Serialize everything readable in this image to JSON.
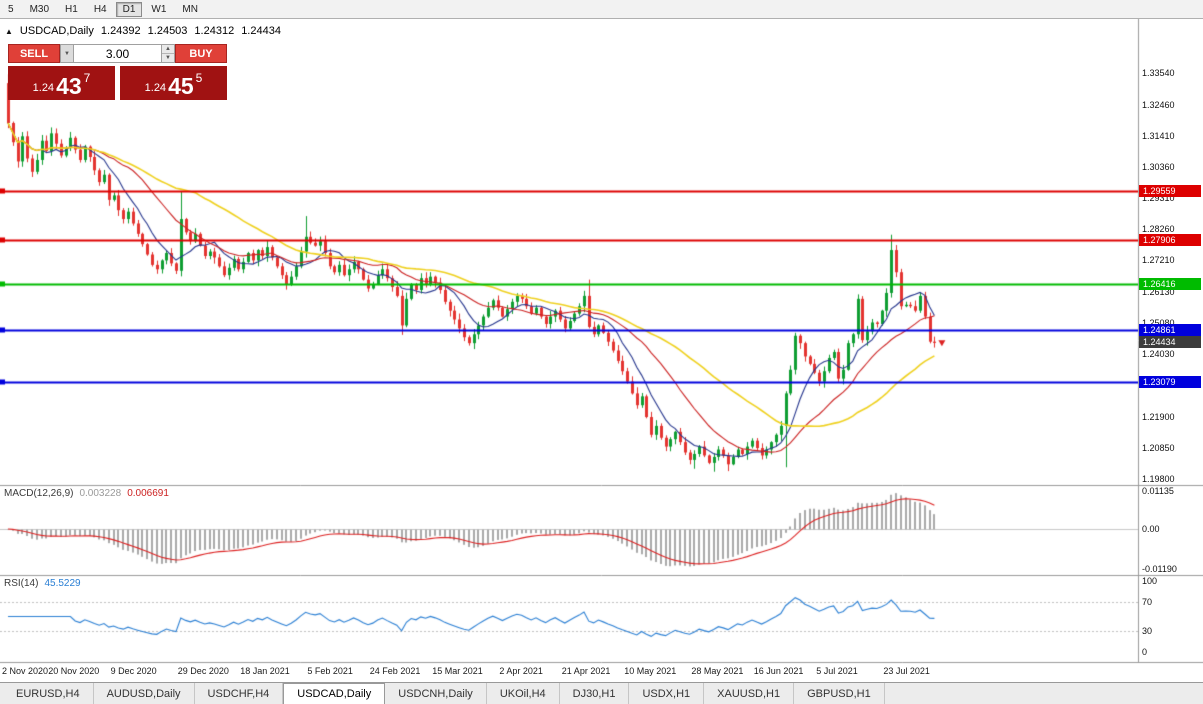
{
  "toolbar": {
    "timeframes": [
      {
        "label": "5",
        "active": false
      },
      {
        "label": "M30",
        "active": false
      },
      {
        "label": "H1",
        "active": false
      },
      {
        "label": "H4",
        "active": false
      },
      {
        "label": "D1",
        "active": true
      },
      {
        "label": "W1",
        "active": false
      },
      {
        "label": "MN",
        "active": false
      }
    ]
  },
  "symbol_header": {
    "tick_icon": "▲",
    "symbol": "USDCAD,Daily",
    "open": "1.24392",
    "high": "1.24503",
    "low": "1.24312",
    "close": "1.24434"
  },
  "trade_panel": {
    "sell_label": "SELL",
    "buy_label": "BUY",
    "volume": "3.00",
    "dropdown_icon": "▼",
    "spinner_up_icon": "▲",
    "spinner_down_icon": "▼",
    "bid": {
      "base": "1.24",
      "big": "43",
      "sup": "7"
    },
    "ask": {
      "base": "1.24",
      "big": "45",
      "sup": "5"
    }
  },
  "macd_panel": {
    "name": "MACD(12,26,9)",
    "main_value": "0.003228",
    "signal_value": "0.006691"
  },
  "rsi_panel": {
    "name": "RSI(14)",
    "value": "45.5229"
  },
  "tabs": [
    {
      "label": "EURUSD,H4",
      "active": false
    },
    {
      "label": "AUDUSD,Daily",
      "active": false
    },
    {
      "label": "USDCHF,H4",
      "active": false
    },
    {
      "label": "USDCAD,Daily",
      "active": true
    },
    {
      "label": "USDCNH,Daily",
      "active": false
    },
    {
      "label": "UKOil,H4",
      "active": false
    },
    {
      "label": "DJ30,H1",
      "active": false
    },
    {
      "label": "USDX,H1",
      "active": false
    },
    {
      "label": "XAUUSD,H1",
      "active": false
    },
    {
      "label": "GBPUSD,H1",
      "active": false
    }
  ],
  "chart_data": {
    "type": "candlestick",
    "symbol": "USDCAD",
    "timeframe": "Daily",
    "first_open": 1.332,
    "closes": [
      1.3185,
      1.312,
      1.3055,
      1.314,
      1.3065,
      1.302,
      1.306,
      1.3125,
      1.309,
      1.315,
      1.3115,
      1.3075,
      1.31,
      1.3135,
      1.3095,
      1.306,
      1.3105,
      1.307,
      1.3025,
      1.2985,
      1.301,
      1.2925,
      1.294,
      1.289,
      1.286,
      1.2885,
      1.2845,
      1.281,
      1.2775,
      1.274,
      1.2705,
      1.269,
      1.272,
      1.2745,
      1.271,
      1.2685,
      1.286,
      1.2815,
      1.2785,
      1.281,
      1.277,
      1.2735,
      1.275,
      1.273,
      1.27,
      1.267,
      1.2695,
      1.2725,
      1.269,
      1.2715,
      1.2745,
      1.272,
      1.2755,
      1.2735,
      1.2765,
      1.273,
      1.27,
      1.267,
      1.264,
      1.2665,
      1.27,
      1.275,
      1.28,
      1.278,
      1.277,
      1.2785,
      1.2745,
      1.27,
      1.268,
      1.2705,
      1.267,
      1.269,
      1.2715,
      1.269,
      1.2655,
      1.2625,
      1.264,
      1.267,
      1.269,
      1.266,
      1.263,
      1.26,
      1.25,
      1.259,
      1.264,
      1.262,
      1.266,
      1.264,
      1.2665,
      1.2645,
      1.262,
      1.258,
      1.255,
      1.252,
      1.249,
      1.246,
      1.244,
      1.247,
      1.25,
      1.253,
      1.256,
      1.2585,
      1.256,
      1.253,
      1.2555,
      1.258,
      1.26,
      1.259,
      1.2565,
      1.254,
      1.256,
      1.253,
      1.2505,
      1.253,
      1.255,
      1.252,
      1.249,
      1.2515,
      1.254,
      1.2565,
      1.26,
      1.2495,
      1.247,
      1.25,
      1.2475,
      1.2445,
      1.2415,
      1.238,
      1.2345,
      1.231,
      1.227,
      1.223,
      1.226,
      1.219,
      1.213,
      1.216,
      1.212,
      1.209,
      1.2115,
      1.214,
      1.2105,
      1.207,
      1.2045,
      1.2065,
      1.209,
      1.206,
      1.2035,
      1.2055,
      1.208,
      1.206,
      1.203,
      1.2055,
      1.208,
      1.2065,
      1.209,
      1.211,
      1.2085,
      1.206,
      1.208,
      1.2105,
      1.213,
      1.216,
      1.227,
      1.235,
      1.2465,
      1.244,
      1.2395,
      1.237,
      1.234,
      1.231,
      1.2345,
      1.239,
      1.241,
      1.232,
      1.235,
      1.244,
      1.247,
      1.259,
      1.245,
      1.248,
      1.251,
      1.2505,
      1.255,
      1.261,
      1.2755,
      1.268,
      1.2565,
      1.257,
      1.2565,
      1.255,
      1.26,
      1.253,
      1.2445,
      1.24434
    ],
    "wick_overrides": {
      "0": {
        "high": 1.335
      },
      "36": {
        "high": 1.2955
      },
      "62": {
        "high": 1.287
      },
      "82": {
        "low": 1.2468
      },
      "121": {
        "high": 1.2655
      },
      "143": {
        "low": 1.2015
      },
      "147": {
        "low": 1.2005
      },
      "150": {
        "low": 1.2007
      },
      "162": {
        "low": 1.202
      },
      "177": {
        "high": 1.2605
      },
      "184": {
        "high": 1.2807
      },
      "193": {
        "low": 1.2425
      }
    },
    "date_labels": [
      {
        "i": 0,
        "text": "2 Nov 2020"
      },
      {
        "i": 14,
        "text": "20 Nov 2020"
      },
      {
        "i": 27,
        "text": "9 Dec 2020"
      },
      {
        "i": 41,
        "text": "29 Dec 2020"
      },
      {
        "i": 54,
        "text": "18 Jan 2021"
      },
      {
        "i": 68,
        "text": "5 Feb 2021"
      },
      {
        "i": 81,
        "text": "24 Feb 2021"
      },
      {
        "i": 94,
        "text": "15 Mar 2021"
      },
      {
        "i": 108,
        "text": "2 Apr 2021"
      },
      {
        "i": 121,
        "text": "21 Apr 2021"
      },
      {
        "i": 134,
        "text": "10 May 2021"
      },
      {
        "i": 148,
        "text": "28 May 2021"
      },
      {
        "i": 161,
        "text": "16 Jun 2021"
      },
      {
        "i": 174,
        "text": "5 Jul 2021"
      },
      {
        "i": 188,
        "text": "23 Jul 2021"
      }
    ],
    "y_axis": {
      "p_max": 1.3537,
      "p_min": 1.196,
      "labels": [
        {
          "price": 1.3354,
          "text": "1.33540"
        },
        {
          "price": 1.3246,
          "text": "1.32460"
        },
        {
          "price": 1.3141,
          "text": "1.31410"
        },
        {
          "price": 1.3036,
          "text": "1.30360"
        },
        {
          "price": 1.2931,
          "text": "1.29310"
        },
        {
          "price": 1.2826,
          "text": "1.28260"
        },
        {
          "price": 1.2721,
          "text": "1.27210"
        },
        {
          "price": 1.2613,
          "text": "1.26130"
        },
        {
          "price": 1.2508,
          "text": "1.25080"
        },
        {
          "price": 1.2403,
          "text": "1.24030"
        },
        {
          "price": 1.2298,
          "text": "1.22980"
        },
        {
          "price": 1.219,
          "text": "1.21900"
        },
        {
          "price": 1.2085,
          "text": "1.20850"
        },
        {
          "price": 1.198,
          "text": "1.19800"
        }
      ]
    },
    "h_lines": [
      {
        "price": 1.29559,
        "label": "1.29559",
        "color": "#dd0000",
        "width": 2
      },
      {
        "price": 1.27906,
        "label": "1.27906",
        "color": "#dd0000",
        "width": 2
      },
      {
        "price": 1.26416,
        "label": "1.26416",
        "color": "#00bb00",
        "width": 2
      },
      {
        "price": 1.24861,
        "label": "1.24861",
        "color": "#0000dd",
        "width": 2
      },
      {
        "price": 1.23079,
        "label": "1.23079",
        "color": "#0000dd",
        "width": 2
      }
    ],
    "current_price": {
      "value": 1.24434,
      "label": "1.24434",
      "color": "#3c3c3c"
    },
    "moving_averages": [
      {
        "period": 8,
        "color": "#26368e"
      },
      {
        "period": 20,
        "color": "#cc2222"
      },
      {
        "period": 40,
        "color": "#efd11f"
      }
    ],
    "macd": {
      "fast": 12,
      "slow": 26,
      "signal": 9,
      "axis_max": 0.013,
      "axis_min": -0.0136,
      "axis_labels": [
        {
          "v": 0.01135,
          "text": "0.01135"
        },
        {
          "v": 0,
          "text": "0.00"
        },
        {
          "v": -0.0119,
          "text": "-0.01190"
        }
      ]
    },
    "rsi": {
      "period": 14,
      "levels": [
        70,
        30
      ],
      "axis_labels": [
        {
          "v": 100,
          "text": "100"
        },
        {
          "v": 70,
          "text": "70"
        },
        {
          "v": 30,
          "text": "30"
        },
        {
          "v": 0,
          "text": "0"
        }
      ]
    },
    "colors": {
      "up": "#0f9e32",
      "down": "#e43430",
      "histogram": "#a9a9a9",
      "signal_line": "#dd2222",
      "rsi_line": "#2a7fd4",
      "separator": "#9a9a9a",
      "zero_line": "#c8c8c8",
      "level_line": "#c0c0c0",
      "arrow": "#dd2222"
    }
  }
}
